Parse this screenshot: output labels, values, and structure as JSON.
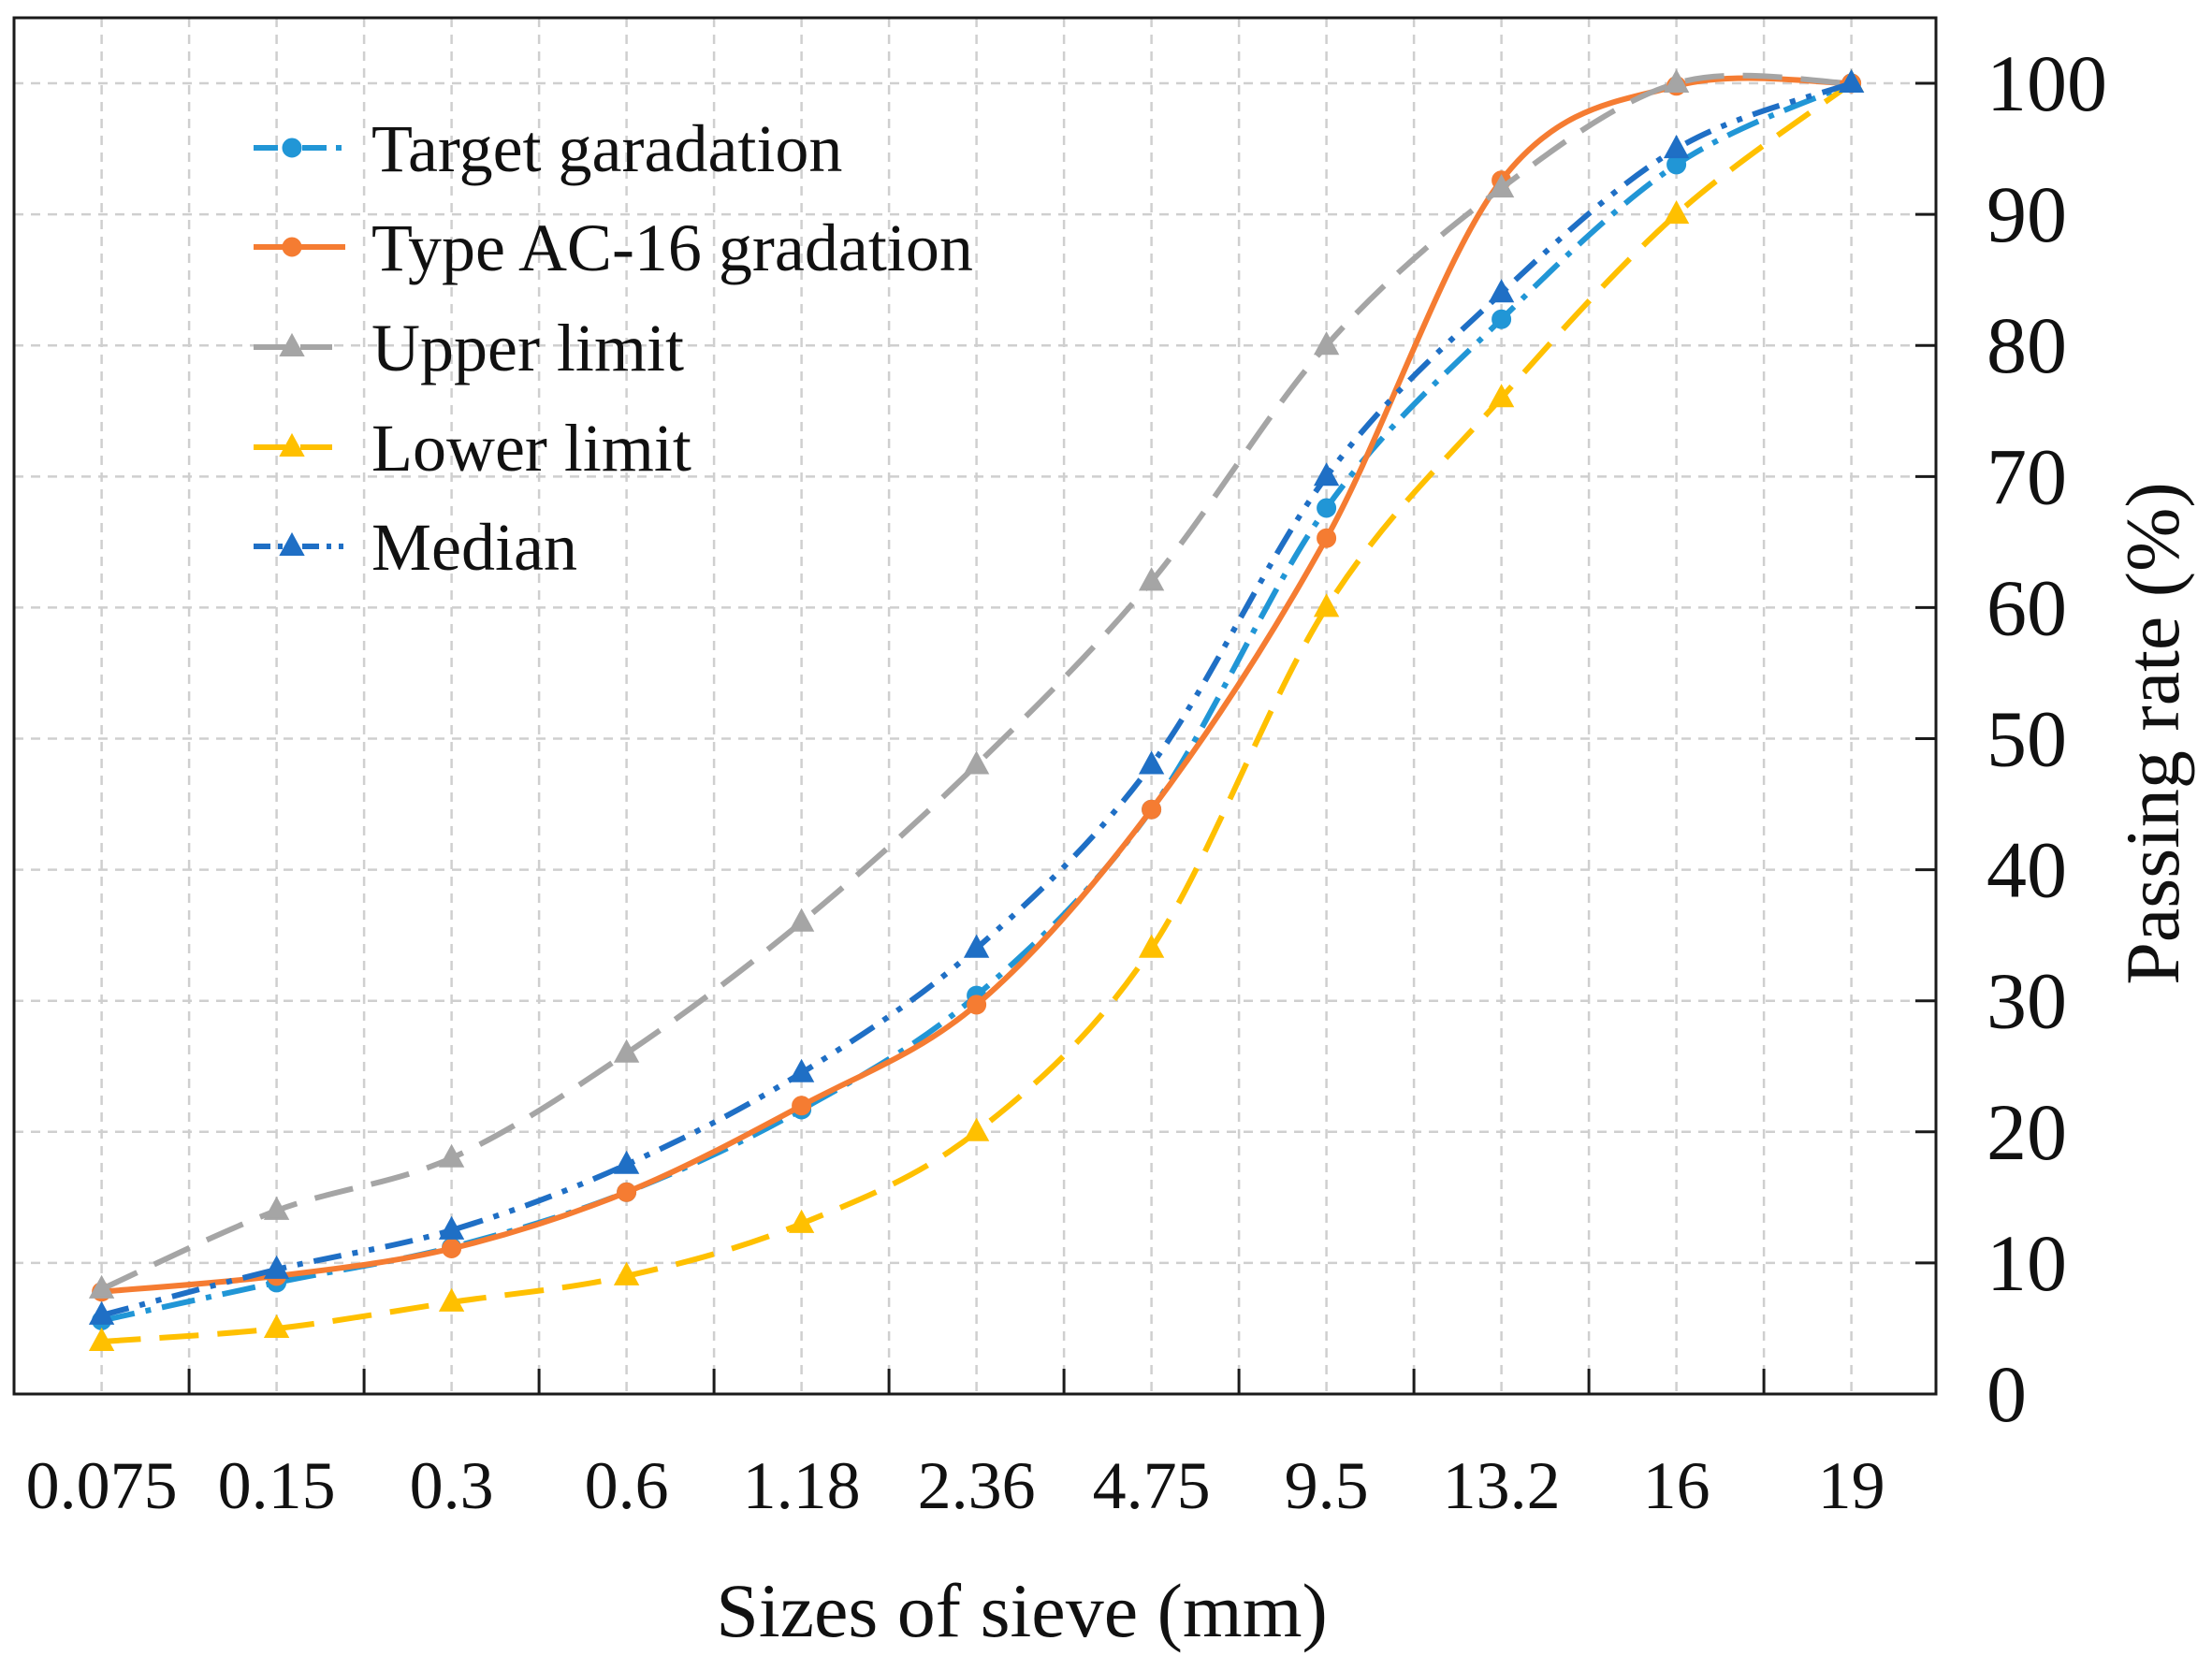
{
  "chart_data": {
    "type": "line",
    "title": "",
    "xlabel": "Sizes of sieve (mm)",
    "ylabel": "Passing rate (%)",
    "categories": [
      "0.075",
      "0.15",
      "0.3",
      "0.6",
      "1.18",
      "2.36",
      "4.75",
      "9.5",
      "13.2",
      "16",
      "19"
    ],
    "ylim": [
      0,
      105
    ],
    "yticks": [
      0,
      10,
      20,
      30,
      40,
      50,
      60,
      70,
      80,
      90,
      100
    ],
    "grid": true,
    "legend_position": "top-left",
    "series": [
      {
        "name": "Target garadation",
        "color": "#2196d6",
        "values": [
          5.6,
          8.5,
          11.2,
          15.4,
          21.7,
          30.4,
          44.6,
          67.6,
          82.0,
          93.8,
          100
        ]
      },
      {
        "name": "Type AC-16 gradation",
        "color": "#f57c32",
        "values": [
          7.8,
          9.0,
          11.1,
          15.4,
          22.0,
          29.7,
          44.6,
          65.3,
          92.6,
          99.8,
          100
        ]
      },
      {
        "name": "Upper limit",
        "color": "#a5a5a5",
        "values": [
          8,
          14,
          18,
          26,
          36,
          48,
          62,
          80,
          92,
          100,
          100
        ]
      },
      {
        "name": "Lower limit",
        "color": "#ffc000",
        "values": [
          4,
          5,
          7,
          9,
          13,
          20,
          34,
          60,
          76,
          90,
          100
        ]
      },
      {
        "name": "Median",
        "color": "#1f6fc5",
        "values": [
          6,
          9.5,
          12.5,
          17.5,
          24.5,
          34,
          48,
          70,
          84,
          95,
          100
        ]
      }
    ]
  }
}
